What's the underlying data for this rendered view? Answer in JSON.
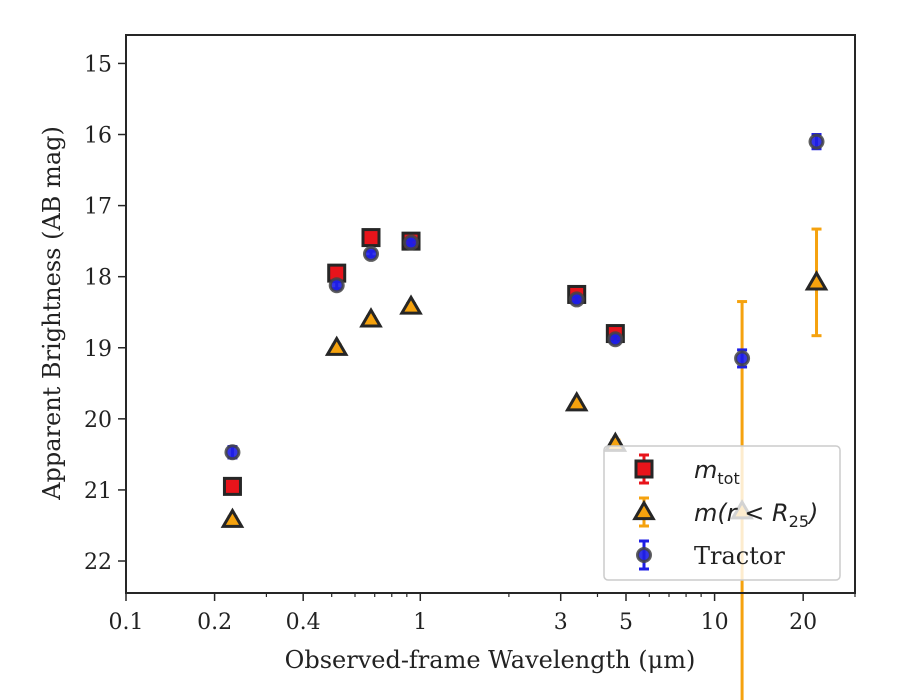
{
  "chart_data": {
    "type": "scatter",
    "title": "",
    "xlabel": "Observed-frame Wavelength (μm)",
    "ylabel": "Apparent Brightness (AB mag)",
    "xscale": "log",
    "xlim": [
      0.1,
      30
    ],
    "ylim": [
      22.45,
      14.6
    ],
    "y_inverted": true,
    "grid": false,
    "legend_position": "lower-right",
    "x_ticks": [
      0.1,
      0.2,
      0.4,
      1,
      3,
      5,
      10,
      20
    ],
    "x_tick_labels": [
      "0.1",
      "0.2",
      "0.4",
      "1",
      "3",
      "5",
      "10",
      "20"
    ],
    "y_ticks": [
      15,
      16,
      17,
      18,
      19,
      20,
      21,
      22
    ],
    "y_tick_labels": [
      "15",
      "16",
      "17",
      "18",
      "19",
      "20",
      "21",
      "22"
    ],
    "series": [
      {
        "name": "m_tot",
        "legend_main": "m",
        "legend_sub": "tot",
        "marker": "square",
        "color": "#e8141b",
        "errcolor": "#e8141b",
        "x": [
          0.23,
          0.52,
          0.68,
          0.93,
          3.4,
          4.6
        ],
        "y": [
          20.95,
          17.95,
          17.45,
          17.5,
          18.25,
          18.8
        ],
        "yerr": [
          0.04,
          0.04,
          0.04,
          0.04,
          0.04,
          0.05
        ]
      },
      {
        "name": "m(r < R_25)",
        "legend_main": "m(r < R",
        "legend_sub": "25",
        "legend_tail": ")",
        "marker": "triangle",
        "color": "#f5a20e",
        "errcolor": "#f5a20e",
        "x": [
          0.23,
          0.52,
          0.68,
          0.93,
          3.4,
          4.6,
          12.4,
          22.2
        ],
        "y": [
          21.42,
          19.0,
          18.6,
          18.42,
          19.78,
          20.35,
          21.3,
          18.08
        ],
        "yerr": [
          0.04,
          0.04,
          0.04,
          0.04,
          0.04,
          0.05,
          2.95,
          0.75
        ]
      },
      {
        "name": "Tractor",
        "marker": "circle",
        "color": "#1e1ee6",
        "errcolor": "#1e1ee6",
        "x": [
          0.23,
          0.52,
          0.68,
          0.93,
          3.4,
          4.6,
          12.4,
          22.2
        ],
        "y": [
          20.47,
          18.12,
          17.68,
          17.52,
          18.32,
          18.88,
          19.15,
          16.1
        ],
        "yerr": [
          0.08,
          0.05,
          0.04,
          0.04,
          0.04,
          0.05,
          0.12,
          0.1
        ]
      }
    ]
  }
}
